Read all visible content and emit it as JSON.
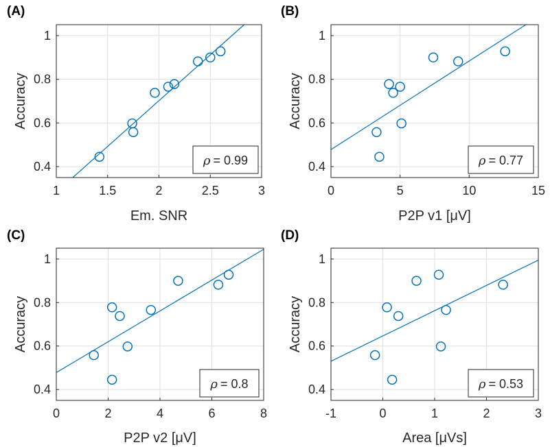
{
  "chart_data": [
    {
      "type": "scatter",
      "panel": "(A)",
      "xlabel": "Em. SNR",
      "ylabel": "Accuracy",
      "xlim": [
        1,
        3
      ],
      "ylim": [
        0.35,
        1.05
      ],
      "xticks": [
        "1",
        "1.5",
        "2",
        "2.5",
        "3"
      ],
      "yticks": [
        "0.4",
        "0.6",
        "0.8",
        "1"
      ],
      "rho_label": "= 0.99",
      "x": [
        1.42,
        1.74,
        1.75,
        1.96,
        2.09,
        2.15,
        2.38,
        2.5,
        2.6
      ],
      "y": [
        0.445,
        0.598,
        0.558,
        0.738,
        0.766,
        0.778,
        0.882,
        0.9,
        0.928
      ],
      "fit": {
        "x": [
          1.16,
          2.83
        ],
        "y": [
          0.35,
          1.05
        ]
      }
    },
    {
      "type": "scatter",
      "panel": "(B)",
      "xlabel": "P2P v1 [μV]",
      "ylabel": "Accuracy",
      "xlim": [
        0,
        15
      ],
      "ylim": [
        0.35,
        1.05
      ],
      "xticks": [
        "0",
        "5",
        "10",
        "15"
      ],
      "yticks": [
        "0.4",
        "0.6",
        "0.8",
        "1"
      ],
      "rho_label": "= 0.77",
      "x": [
        3.3,
        3.5,
        4.2,
        4.5,
        5.0,
        5.1,
        7.4,
        9.2,
        12.6
      ],
      "y": [
        0.558,
        0.445,
        0.778,
        0.738,
        0.766,
        0.598,
        0.9,
        0.882,
        0.928
      ],
      "fit": {
        "x": [
          0,
          14.1
        ],
        "y": [
          0.478,
          1.05
        ]
      }
    },
    {
      "type": "scatter",
      "panel": "(C)",
      "xlabel": "P2P v2 [μV]",
      "ylabel": "Accuracy",
      "xlim": [
        0,
        8
      ],
      "ylim": [
        0.35,
        1.05
      ],
      "xticks": [
        "0",
        "2",
        "4",
        "6",
        "8"
      ],
      "yticks": [
        "0.4",
        "0.6",
        "0.8",
        "1"
      ],
      "rho_label": "= 0.8",
      "x": [
        1.45,
        2.15,
        2.15,
        2.45,
        2.75,
        3.65,
        4.7,
        6.25,
        6.65
      ],
      "y": [
        0.558,
        0.445,
        0.778,
        0.738,
        0.598,
        0.766,
        0.9,
        0.882,
        0.928
      ],
      "fit": {
        "x": [
          0,
          8
        ],
        "y": [
          0.478,
          1.045
        ]
      }
    },
    {
      "type": "scatter",
      "panel": "(D)",
      "xlabel": "Area [μVs]",
      "ylabel": "Accuracy",
      "xlim": [
        -1,
        3
      ],
      "ylim": [
        0.35,
        1.05
      ],
      "xticks": [
        "-1",
        "0",
        "1",
        "2",
        "3"
      ],
      "yticks": [
        "0.4",
        "0.6",
        "0.8",
        "1"
      ],
      "rho_label": "= 0.53",
      "x": [
        -0.15,
        0.08,
        0.18,
        0.3,
        0.65,
        1.08,
        1.12,
        1.22,
        2.32
      ],
      "y": [
        0.558,
        0.778,
        0.445,
        0.738,
        0.9,
        0.928,
        0.598,
        0.766,
        0.882
      ],
      "fit": {
        "x": [
          -1,
          3
        ],
        "y": [
          0.53,
          0.995
        ]
      }
    }
  ]
}
